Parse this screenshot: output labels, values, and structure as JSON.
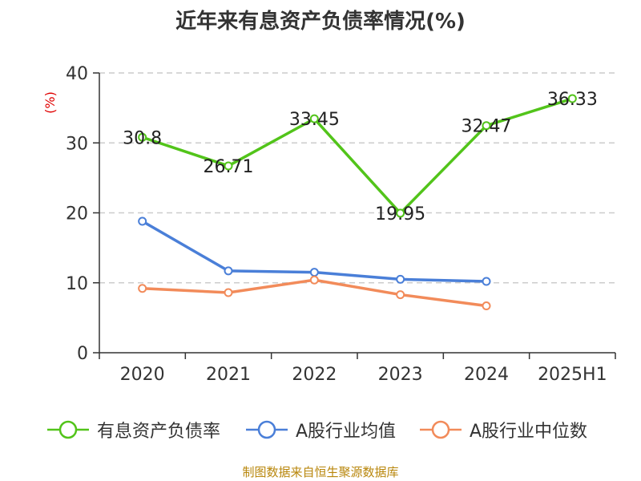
{
  "title": "近年来有息资产负债率情况(%)",
  "source": "制图数据来自恒生聚源数据库",
  "chart_data": {
    "type": "line",
    "title": "近年来有息资产负债率情况(%)",
    "ylabel": "(%)",
    "ylim": [
      0,
      40
    ],
    "yticks": [
      0,
      10,
      20,
      30,
      40
    ],
    "grid": true,
    "legend_position": "bottom",
    "categories": [
      "2020",
      "2021",
      "2022",
      "2023",
      "2024",
      "2025H1"
    ],
    "series": [
      {
        "name": "有息资产负债率",
        "color": "#52c41a",
        "values": [
          30.8,
          26.71,
          33.45,
          19.95,
          32.47,
          36.33
        ],
        "labels": [
          "30.8",
          "26.71",
          "33.45",
          "19.95",
          "32.47",
          "36.33"
        ]
      },
      {
        "name": "A股行业均值",
        "color": "#4a7fd8",
        "values": [
          18.8,
          11.7,
          11.5,
          10.5,
          10.2,
          null
        ]
      },
      {
        "name": "A股行业中位数",
        "color": "#f28b5a",
        "values": [
          9.2,
          8.6,
          10.4,
          8.3,
          6.7,
          null
        ]
      }
    ]
  }
}
